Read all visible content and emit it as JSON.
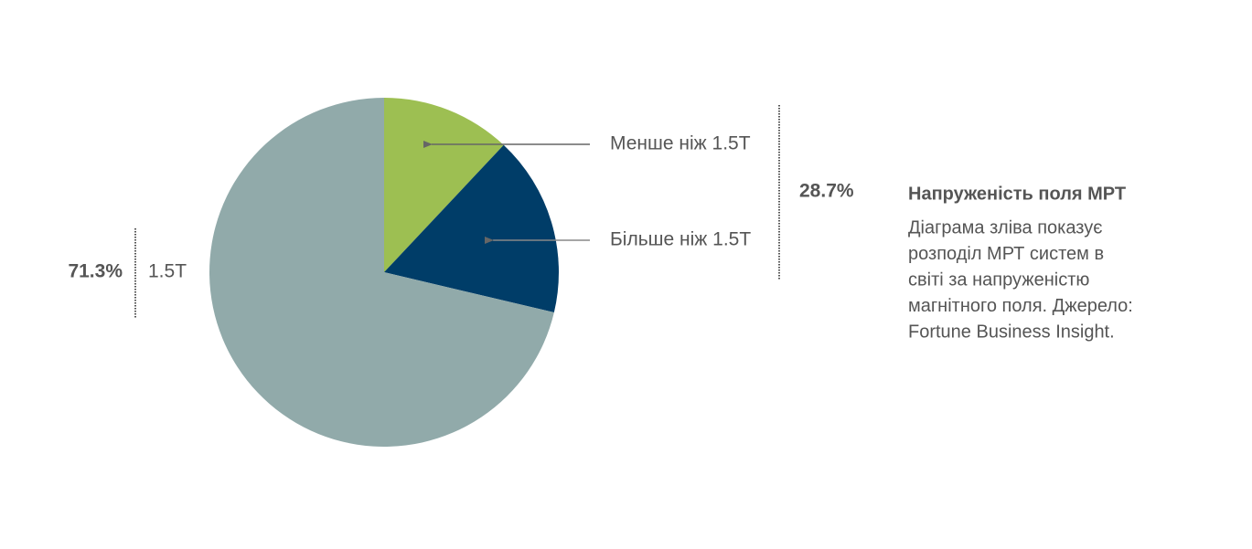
{
  "chart_data": {
    "type": "pie",
    "categories": [
      "Менше ніж 1.5T",
      "Більше ніж 1.5T",
      "1.5T"
    ],
    "values": [
      12.0,
      16.7,
      71.3
    ],
    "value_labels": [
      null,
      null,
      "71.3%"
    ],
    "colors": [
      "#9dbf52",
      "#003d68",
      "#91aaaa"
    ],
    "group_total": {
      "value": 28.7,
      "label": "28.7%"
    },
    "annotation_title": "Напруженість поля МРТ",
    "annotation_lines": [
      "Діаграма зліва показує",
      "розподіл МРТ систем в",
      "світі за напруженістю",
      "магнітного поля. Джерело:",
      "Fortune Business Insight."
    ]
  }
}
